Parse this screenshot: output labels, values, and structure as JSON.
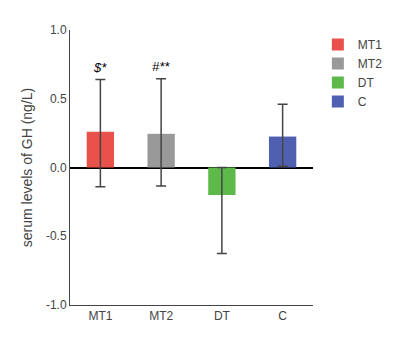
{
  "chart_data": {
    "type": "bar",
    "categories": [
      "MT1",
      "MT2",
      "DT",
      "C"
    ],
    "values": [
      0.26,
      0.245,
      -0.2,
      0.225
    ],
    "error_upper": [
      0.38,
      0.4,
      0.2,
      0.235
    ],
    "error_lower": [
      0.4,
      0.38,
      0.425,
      0.215
    ],
    "colors": [
      "#e8524a",
      "#999999",
      "#5dba4a",
      "#5060b0"
    ],
    "ylabel": "serum levels of GH (ng/L)",
    "ylim": [
      -1.0,
      1.0
    ],
    "yticks": [
      {
        "value": -1.0,
        "label": "-1.0"
      },
      -0.5,
      {
        "value": 0.0,
        "label": "0.0"
      },
      0.5,
      {
        "value": 1.0,
        "label": "1.0"
      }
    ],
    "grid": false,
    "legend": "right",
    "annotations": [
      {
        "text": "$*",
        "category": "MT1"
      },
      {
        "text": "#**",
        "category": "MT2"
      }
    ]
  }
}
